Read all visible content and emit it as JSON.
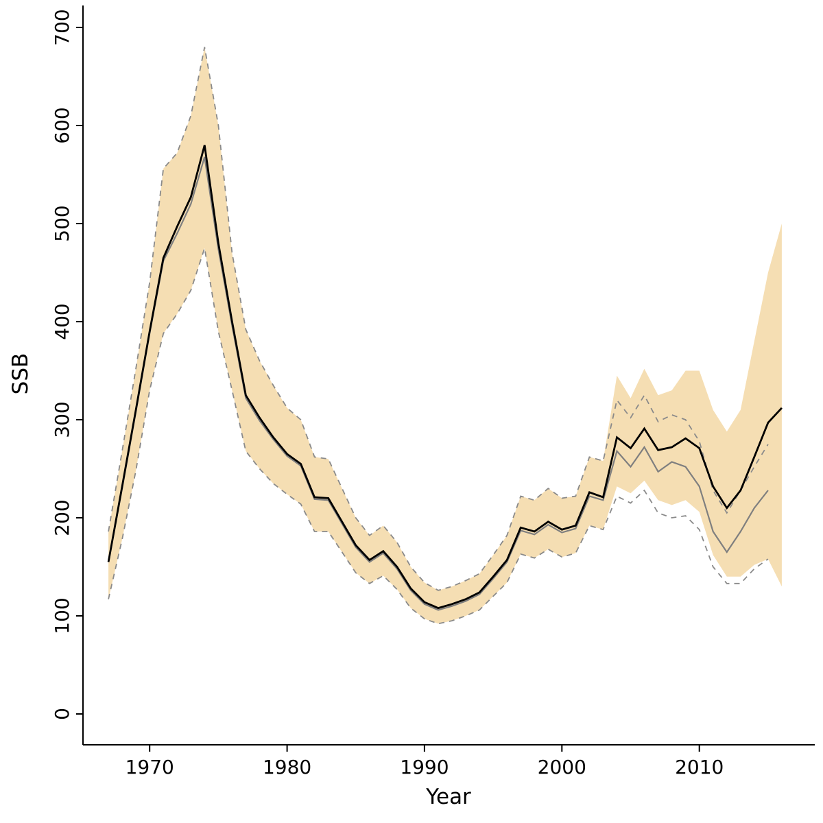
{
  "colors": {
    "background": "#ffffff",
    "band": "#F5DEB3",
    "dashed_ci": "#8a8a8a",
    "previous_line": "#7f7f7f",
    "estimate_line": "#000000",
    "axis": "#000000"
  },
  "chart_data": {
    "type": "line",
    "title": "",
    "xlabel": "Year",
    "ylabel": "SSB",
    "xlim": [
      1965.15,
      2018.4
    ],
    "ylim": [
      0,
      700
    ],
    "x_ticks": [
      1970,
      1980,
      1990,
      2000,
      2010
    ],
    "y_ticks": [
      0,
      100,
      200,
      300,
      400,
      500,
      600,
      700
    ],
    "grid": false,
    "legend_position": "none",
    "band": {
      "name": "ssb-confidence-band",
      "x": [
        1967,
        1968,
        1969,
        1970,
        1971,
        1972,
        1973,
        1974,
        1975,
        1976,
        1977,
        1978,
        1979,
        1980,
        1981,
        1982,
        1983,
        1984,
        1985,
        1986,
        1987,
        1988,
        1989,
        1990,
        1991,
        1992,
        1993,
        1994,
        1995,
        1996,
        1997,
        1998,
        1999,
        2000,
        2001,
        2002,
        2003,
        2004,
        2005,
        2006,
        2007,
        2008,
        2009,
        2010,
        2011,
        2012,
        2013,
        2014,
        2015,
        2016
      ],
      "upper": [
        186,
        268,
        352,
        440,
        556,
        572,
        610,
        680,
        600,
        470,
        392,
        360,
        335,
        312,
        300,
        262,
        260,
        230,
        200,
        182,
        192,
        175,
        150,
        134,
        126,
        130,
        136,
        143,
        162,
        182,
        222,
        218,
        230,
        220,
        222,
        262,
        258,
        345,
        322,
        352,
        325,
        330,
        350,
        350,
        310,
        288,
        310,
        380,
        450,
        500
      ],
      "lower": [
        117,
        178,
        248,
        330,
        388,
        408,
        432,
        475,
        390,
        330,
        268,
        250,
        235,
        224,
        214,
        186,
        186,
        165,
        144,
        133,
        141,
        127,
        108,
        97,
        92,
        95,
        100,
        106,
        120,
        134,
        163,
        159,
        168,
        160,
        164,
        192,
        188,
        232,
        225,
        238,
        218,
        213,
        218,
        206,
        162,
        140,
        140,
        152,
        158,
        130
      ]
    },
    "series": [
      {
        "name": "previous-ci-upper",
        "style": "dashed",
        "x": [
          1967,
          1968,
          1969,
          1970,
          1971,
          1972,
          1973,
          1974,
          1975,
          1976,
          1977,
          1978,
          1979,
          1980,
          1981,
          1982,
          1983,
          1984,
          1985,
          1986,
          1987,
          1988,
          1989,
          1990,
          1991,
          1992,
          1993,
          1994,
          1995,
          1996,
          1997,
          1998,
          1999,
          2000,
          2001,
          2002,
          2003,
          2004,
          2005,
          2006,
          2007,
          2008,
          2009,
          2010,
          2011,
          2012,
          2013,
          2014,
          2015
        ],
        "values": [
          186,
          268,
          352,
          440,
          556,
          572,
          610,
          680,
          600,
          470,
          392,
          360,
          335,
          312,
          300,
          262,
          260,
          230,
          200,
          182,
          192,
          175,
          150,
          134,
          126,
          130,
          136,
          143,
          162,
          182,
          222,
          218,
          230,
          220,
          222,
          262,
          258,
          320,
          302,
          325,
          298,
          305,
          300,
          278,
          228,
          205,
          228,
          252,
          275
        ]
      },
      {
        "name": "previous-ci-lower",
        "style": "dashed",
        "x": [
          1967,
          1968,
          1969,
          1970,
          1971,
          1972,
          1973,
          1974,
          1975,
          1976,
          1977,
          1978,
          1979,
          1980,
          1981,
          1982,
          1983,
          1984,
          1985,
          1986,
          1987,
          1988,
          1989,
          1990,
          1991,
          1992,
          1993,
          1994,
          1995,
          1996,
          1997,
          1998,
          1999,
          2000,
          2001,
          2002,
          2003,
          2004,
          2005,
          2006,
          2007,
          2008,
          2009,
          2010,
          2011,
          2012,
          2013,
          2014,
          2015
        ],
        "values": [
          117,
          178,
          248,
          330,
          388,
          408,
          432,
          475,
          390,
          330,
          268,
          250,
          235,
          224,
          214,
          186,
          186,
          165,
          144,
          133,
          141,
          127,
          108,
          97,
          92,
          95,
          100,
          106,
          120,
          134,
          163,
          159,
          168,
          160,
          164,
          192,
          188,
          222,
          215,
          228,
          205,
          200,
          202,
          188,
          150,
          133,
          133,
          148,
          158
        ]
      },
      {
        "name": "previous-estimate",
        "style": "solid-gray",
        "x": [
          1967,
          1968,
          1969,
          1970,
          1971,
          1972,
          1973,
          1974,
          1975,
          1976,
          1977,
          1978,
          1979,
          1980,
          1981,
          1982,
          1983,
          1984,
          1985,
          1986,
          1987,
          1988,
          1989,
          1990,
          1991,
          1992,
          1993,
          1994,
          1995,
          1996,
          1997,
          1998,
          1999,
          2000,
          2001,
          2002,
          2003,
          2004,
          2005,
          2006,
          2007,
          2008,
          2009,
          2010,
          2011,
          2012,
          2013,
          2014,
          2015
        ],
        "values": [
          155,
          230,
          308,
          388,
          462,
          490,
          520,
          568,
          474,
          396,
          322,
          299,
          280,
          263,
          253,
          219,
          218,
          194,
          170,
          155,
          164,
          148,
          126,
          112,
          106,
          110,
          115,
          122,
          138,
          155,
          187,
          183,
          193,
          185,
          189,
          222,
          218,
          268,
          252,
          272,
          247,
          257,
          252,
          232,
          186,
          165,
          186,
          210,
          228
        ]
      },
      {
        "name": "ssb-estimate",
        "style": "solid-black",
        "x": [
          1967,
          1968,
          1969,
          1970,
          1971,
          1972,
          1973,
          1974,
          1975,
          1976,
          1977,
          1978,
          1979,
          1980,
          1981,
          1982,
          1983,
          1984,
          1985,
          1986,
          1987,
          1988,
          1989,
          1990,
          1991,
          1992,
          1993,
          1994,
          1995,
          1996,
          1997,
          1998,
          1999,
          2000,
          2001,
          2002,
          2003,
          2004,
          2005,
          2006,
          2007,
          2008,
          2009,
          2010,
          2011,
          2012,
          2013,
          2014,
          2015,
          2016
        ],
        "values": [
          155,
          232,
          310,
          390,
          465,
          497,
          527,
          580,
          480,
          400,
          325,
          302,
          282,
          265,
          255,
          221,
          220,
          196,
          172,
          157,
          166,
          150,
          128,
          114,
          108,
          112,
          117,
          124,
          140,
          157,
          190,
          186,
          196,
          188,
          192,
          226,
          221,
          282,
          271,
          291,
          269,
          272,
          281,
          271,
          232,
          210,
          228,
          262,
          297,
          312
        ]
      }
    ]
  }
}
